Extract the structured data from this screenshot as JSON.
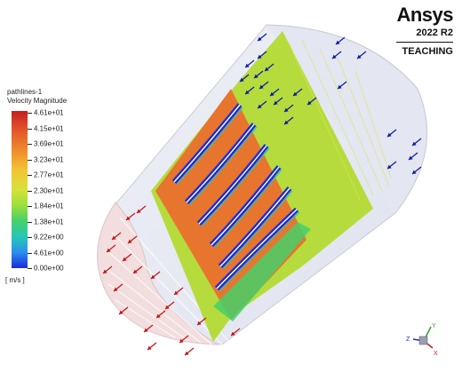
{
  "brand": {
    "name": "Ansys",
    "version": "2022 R2",
    "edition": "TEACHING"
  },
  "legend": {
    "title_line1": "pathlines-1",
    "title_line2": "Velocity Magnitude",
    "unit": "[ m/s ]",
    "levels": [
      "4.61e+01",
      "4.15e+01",
      "3.69e+01",
      "3.23e+01",
      "2.77e+01",
      "2.30e+01",
      "1.84e+01",
      "1.38e+01",
      "9.22e+00",
      "4.61e+00",
      "0.00e+00"
    ],
    "colors": [
      "#c81e1e",
      "#e2552a",
      "#ef8b2a",
      "#f3c235",
      "#d7e23a",
      "#9be03a",
      "#45d06a",
      "#27c7b4",
      "#2a8ff0",
      "#1a2bd8"
    ]
  },
  "axes": {
    "labels": [
      "Z",
      "Y",
      "X"
    ]
  },
  "scene": {
    "inlet_arrow_color": "#0a1aa0",
    "outlet_arrow_color": "#c41414",
    "duct_color": "#e6e8f2",
    "cascade_green": "#b5dc3c"
  }
}
